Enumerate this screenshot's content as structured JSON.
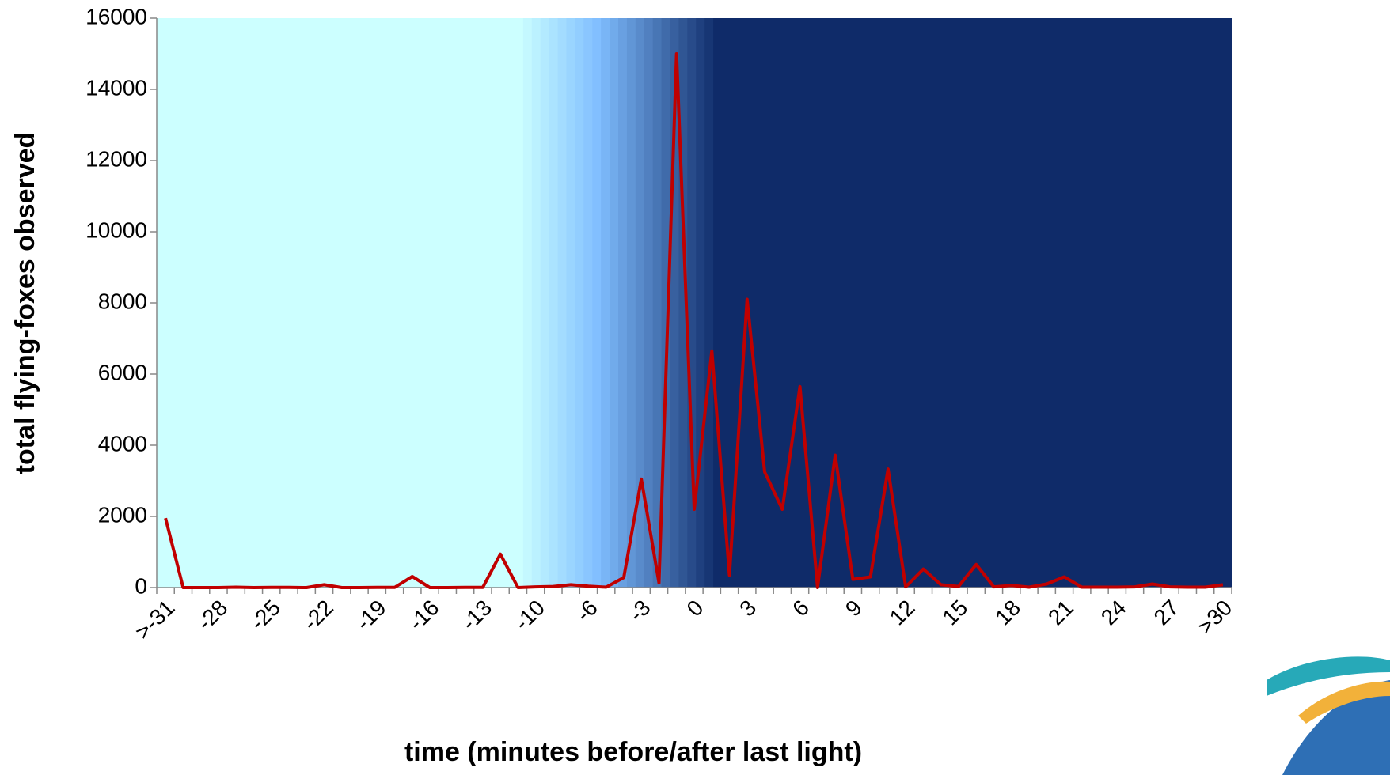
{
  "chart_data": {
    "type": "line",
    "xlabel": "time (minutes before/after last light)",
    "ylabel": "total flying-foxes observed",
    "categories": [
      ">-31",
      null,
      null,
      "-28",
      null,
      null,
      "-25",
      null,
      null,
      "-22",
      null,
      null,
      "-19",
      null,
      null,
      "-16",
      null,
      null,
      "-13",
      null,
      null,
      "-10",
      null,
      null,
      "-6",
      null,
      null,
      "-3",
      null,
      null,
      "0",
      null,
      null,
      "3",
      null,
      null,
      "6",
      null,
      null,
      "9",
      null,
      null,
      "12",
      null,
      null,
      "15",
      null,
      null,
      "18",
      null,
      null,
      "21",
      null,
      null,
      "24",
      null,
      null,
      "27",
      null,
      null,
      ">30"
    ],
    "series": [
      {
        "color": "#c00000",
        "values": [
          1950,
          0,
          0,
          0,
          10,
          0,
          5,
          5,
          0,
          80,
          0,
          0,
          5,
          5,
          310,
          0,
          0,
          5,
          5,
          940,
          0,
          20,
          30,
          80,
          40,
          10,
          280,
          3050,
          130,
          15000,
          2200,
          6650,
          350,
          8100,
          3250,
          2200,
          5650,
          0,
          3720,
          230,
          300,
          3330,
          20,
          520,
          80,
          30,
          650,
          20,
          60,
          10,
          100,
          300,
          10,
          10,
          10,
          20,
          100,
          20,
          10,
          10,
          80
        ]
      }
    ],
    "ylim": [
      0,
      16000
    ],
    "yticks": [
      0,
      2000,
      4000,
      6000,
      8000,
      10000,
      12000,
      14000,
      16000
    ]
  }
}
